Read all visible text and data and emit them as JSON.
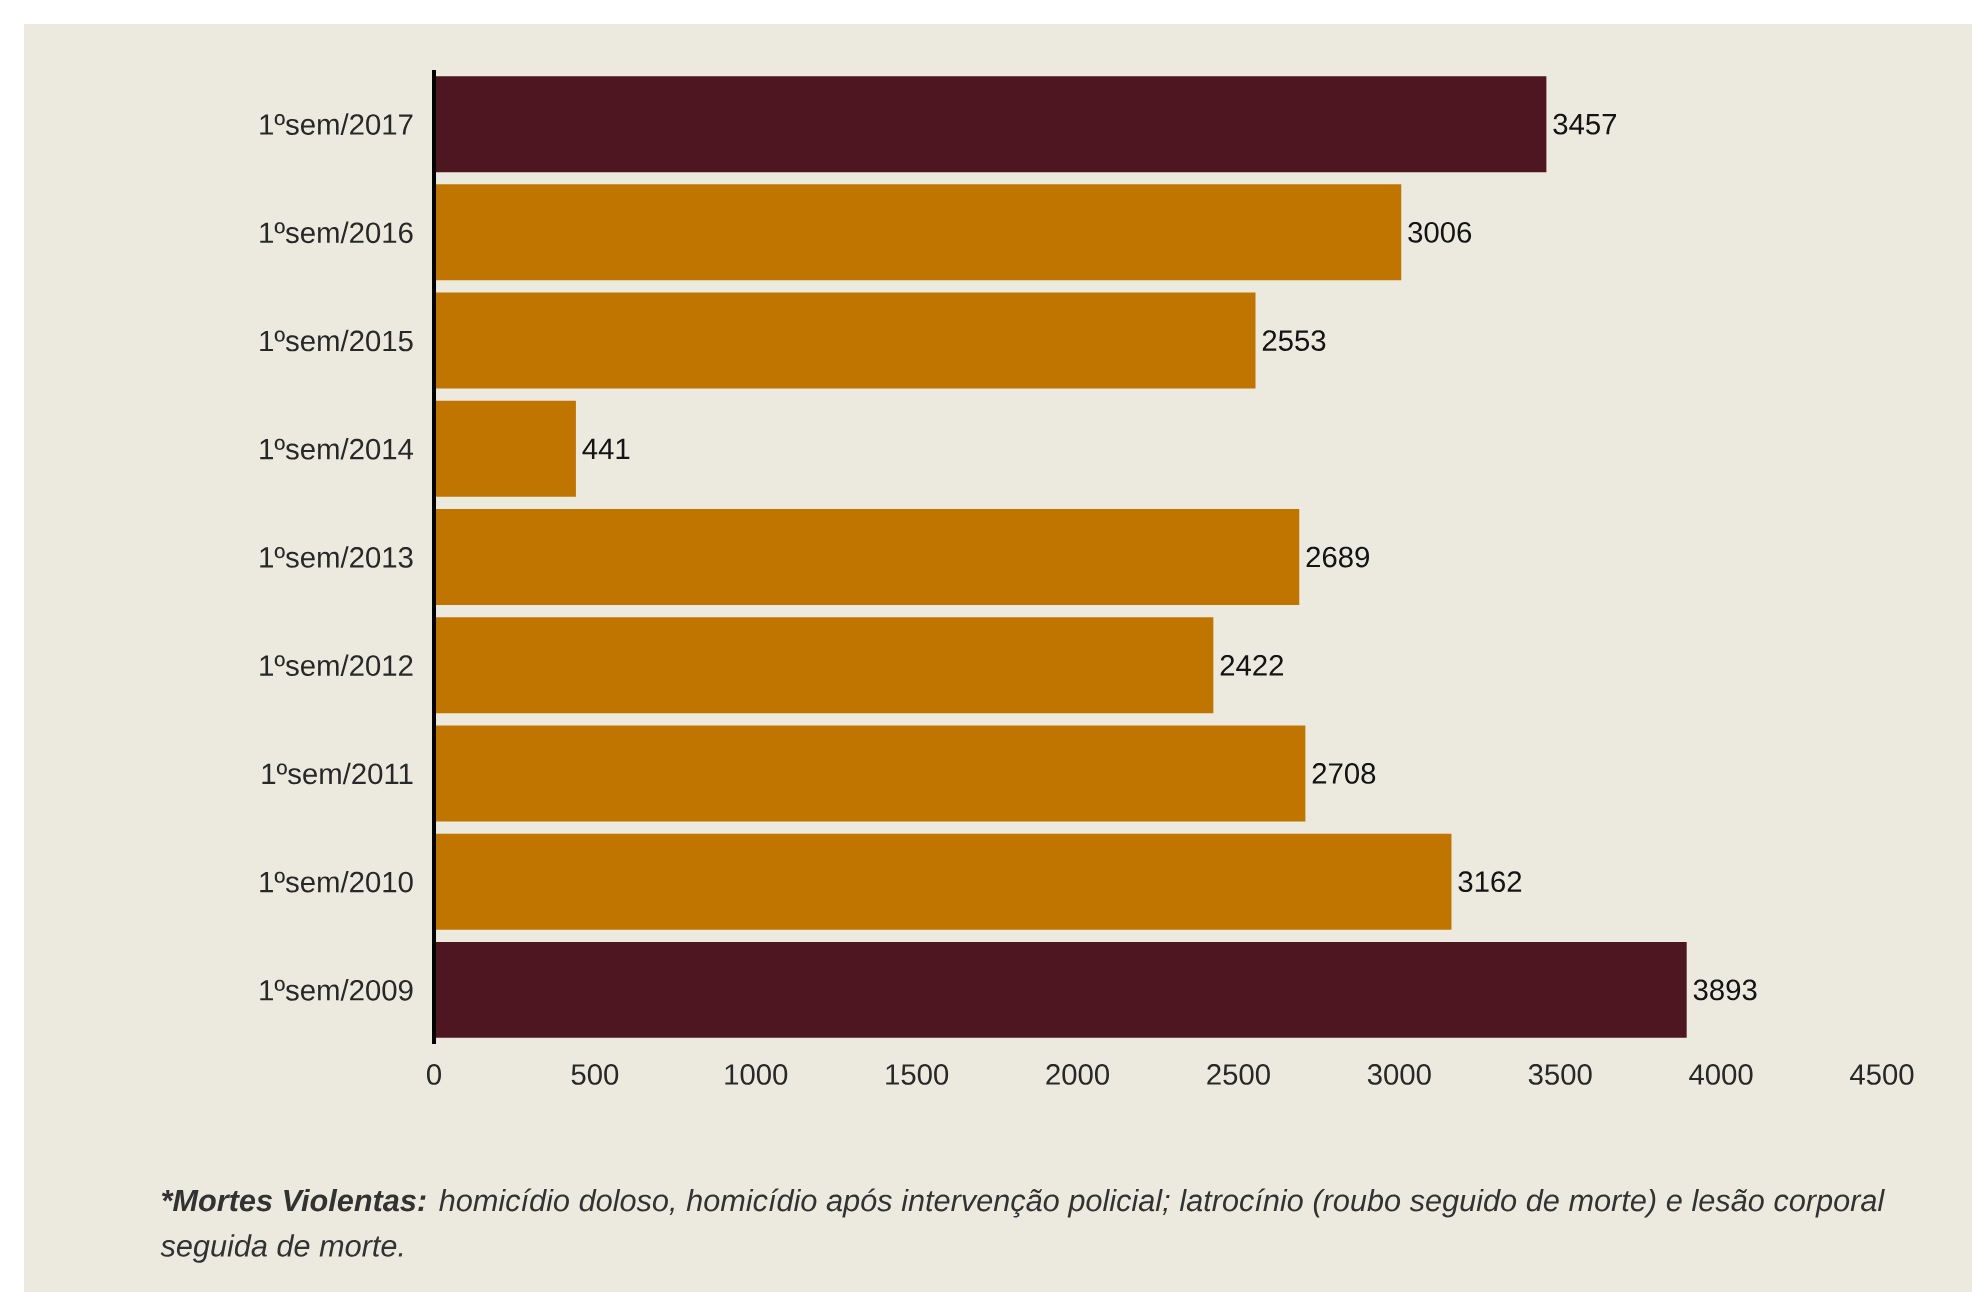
{
  "chart_data": {
    "type": "bar",
    "orientation": "horizontal",
    "categories": [
      "1ºsem/2017",
      "1ºsem/2016",
      "1ºsem/2015",
      "1ºsem/2014",
      "1ºsem/2013",
      "1ºsem/2012",
      "1ºsem/2011",
      "1ºsem/2010",
      "1ºsem/2009"
    ],
    "values": [
      3457,
      3006,
      2553,
      441,
      2689,
      2422,
      2708,
      3162,
      3893
    ],
    "colors": [
      "#4e1620",
      "#c07500",
      "#c07500",
      "#c07500",
      "#c07500",
      "#c07500",
      "#c07500",
      "#c07500",
      "#4e1620"
    ],
    "xlim": [
      0,
      4500
    ],
    "xticks": [
      0,
      500,
      1000,
      1500,
      2000,
      2500,
      3000,
      3500,
      4000,
      4500
    ],
    "data_labels": true,
    "annotations": [
      "*Mortes Violentas:",
      "homicídio doloso, homicídio após intervenção policial; latrocínio (roubo seguido de morte) e lesão corporal seguida de morte."
    ]
  }
}
